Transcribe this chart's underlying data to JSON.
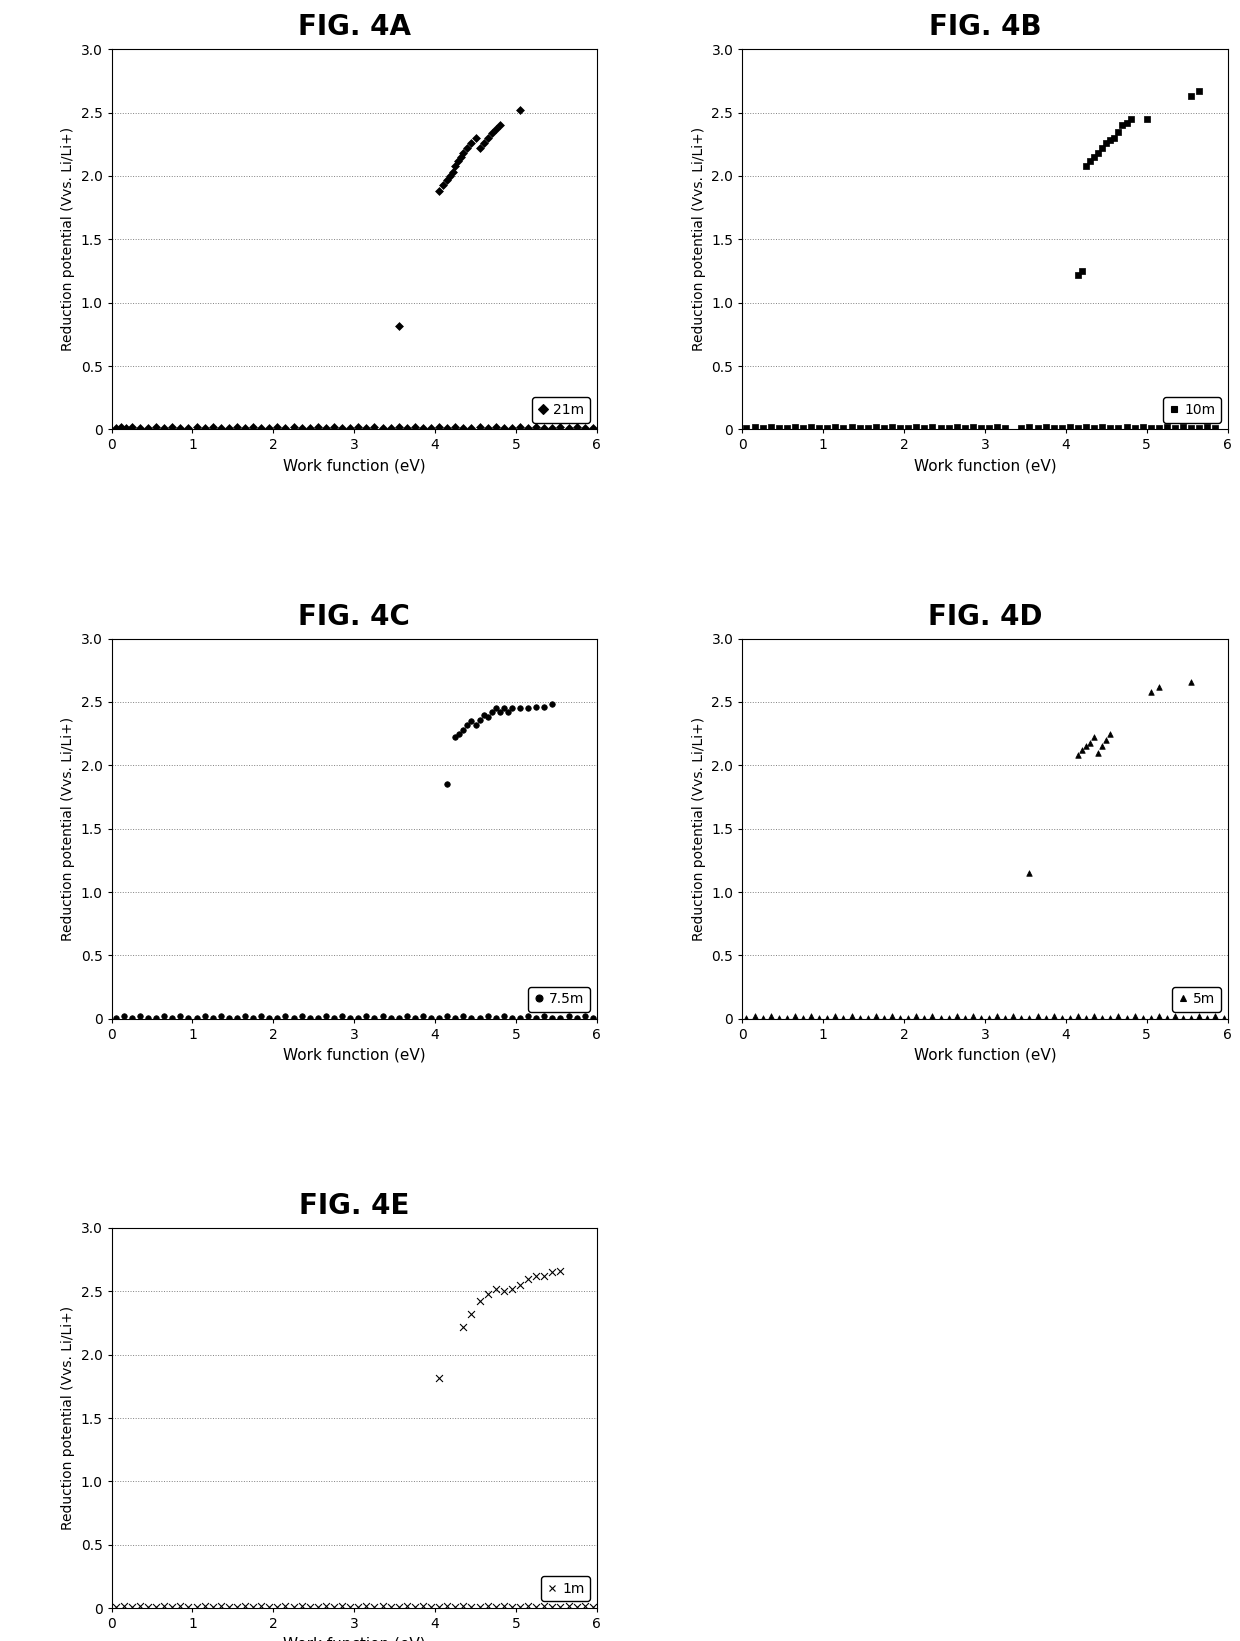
{
  "fig_titles": [
    "FIG. 4A",
    "FIG. 4B",
    "FIG. 4C",
    "FIG. 4D",
    "FIG. 4E"
  ],
  "legend_labels": [
    "21m",
    "10m",
    "7.5m",
    "5m",
    "1m"
  ],
  "markers": [
    "D",
    "s",
    "o",
    "^",
    "x"
  ],
  "xlabel": "Work function (eV)",
  "ylabel": "Reduction potential (Vvs. Li/Li+)",
  "xlim": [
    0,
    6
  ],
  "ylim": [
    0.0,
    3.0
  ],
  "yticks": [
    0.0,
    0.5,
    1.0,
    1.5,
    2.0,
    2.5,
    3.0
  ],
  "ytick_labels": [
    "0",
    "0.5",
    "1.0",
    "1.5",
    "2.0",
    "2.5",
    "3.0"
  ],
  "xticks": [
    0,
    1,
    2,
    3,
    4,
    5,
    6
  ],
  "plots": [
    {
      "comment": "FIG 4A - 21m - diamond markers",
      "x_near_zero": [
        0.05,
        0.12,
        0.18,
        0.25,
        0.35,
        0.45,
        0.55,
        0.65,
        0.75,
        0.85,
        0.95,
        1.05,
        1.15,
        1.25,
        1.35,
        1.45,
        1.55,
        1.65,
        1.75,
        1.85,
        1.95,
        2.05,
        2.15,
        2.25,
        2.35,
        2.45,
        2.55,
        2.65,
        2.75,
        2.85,
        2.95,
        3.05,
        3.15,
        3.25,
        3.35,
        3.45,
        3.55,
        3.65,
        3.75,
        3.85,
        3.95,
        4.05,
        4.15,
        4.25,
        4.35,
        4.45,
        4.55,
        4.65,
        4.75,
        4.85,
        4.95,
        5.05,
        5.15,
        5.25,
        5.35,
        5.45,
        5.55,
        5.65,
        5.75,
        5.85,
        5.95
      ],
      "y_near_zero": [
        0.01,
        0.02,
        0.01,
        0.02,
        0.01,
        0.01,
        0.02,
        0.01,
        0.02,
        0.01,
        0.01,
        0.02,
        0.01,
        0.02,
        0.01,
        0.01,
        0.02,
        0.01,
        0.02,
        0.01,
        0.01,
        0.02,
        0.01,
        0.02,
        0.01,
        0.01,
        0.02,
        0.01,
        0.02,
        0.01,
        0.01,
        0.02,
        0.01,
        0.02,
        0.01,
        0.01,
        0.02,
        0.01,
        0.02,
        0.01,
        0.01,
        0.02,
        0.01,
        0.02,
        0.01,
        0.01,
        0.02,
        0.01,
        0.02,
        0.01,
        0.01,
        0.02,
        0.01,
        0.02,
        0.01,
        0.01,
        0.02,
        0.01,
        0.02,
        0.01,
        0.01
      ],
      "x_cluster": [
        3.55,
        4.05,
        4.1,
        4.15,
        4.18,
        4.22,
        4.25,
        4.28,
        4.32,
        4.35,
        4.4,
        4.45,
        4.5,
        4.55,
        4.6,
        4.65,
        4.7,
        4.75,
        4.8,
        5.05
      ],
      "y_cluster": [
        0.82,
        1.88,
        1.93,
        1.97,
        2.0,
        2.03,
        2.08,
        2.12,
        2.15,
        2.18,
        2.22,
        2.26,
        2.3,
        2.22,
        2.26,
        2.3,
        2.34,
        2.37,
        2.4,
        2.52
      ]
    },
    {
      "comment": "FIG 4B - 10m - square markers",
      "x_near_zero": [
        0.05,
        0.15,
        0.25,
        0.35,
        0.45,
        0.55,
        0.65,
        0.75,
        0.85,
        0.95,
        1.05,
        1.15,
        1.25,
        1.35,
        1.45,
        1.55,
        1.65,
        1.75,
        1.85,
        1.95,
        2.05,
        2.15,
        2.25,
        2.35,
        2.45,
        2.55,
        2.65,
        2.75,
        2.85,
        2.95,
        3.05,
        3.15,
        3.25,
        3.45,
        3.55,
        3.65,
        3.75,
        3.85,
        3.95,
        4.05,
        4.15,
        4.25,
        4.35,
        4.45,
        4.55,
        4.65,
        4.75,
        4.85,
        4.95,
        5.05,
        5.15,
        5.25,
        5.35,
        5.45,
        5.55,
        5.65,
        5.75,
        5.85
      ],
      "y_near_zero": [
        0.01,
        0.02,
        0.01,
        0.02,
        0.01,
        0.01,
        0.02,
        0.01,
        0.02,
        0.01,
        0.01,
        0.02,
        0.01,
        0.02,
        0.01,
        0.01,
        0.02,
        0.01,
        0.02,
        0.01,
        0.01,
        0.02,
        0.01,
        0.02,
        0.01,
        0.01,
        0.02,
        0.01,
        0.02,
        0.01,
        0.01,
        0.02,
        0.01,
        0.01,
        0.02,
        0.01,
        0.02,
        0.01,
        0.01,
        0.02,
        0.01,
        0.02,
        0.01,
        0.02,
        0.01,
        0.01,
        0.02,
        0.01,
        0.02,
        0.01,
        0.01,
        0.02,
        0.01,
        0.02,
        0.01,
        0.01,
        0.02,
        0.01
      ],
      "x_cluster": [
        4.15,
        4.2,
        4.25,
        4.3,
        4.35,
        4.4,
        4.45,
        4.5,
        4.55,
        4.6,
        4.65,
        4.7,
        4.75,
        4.8,
        5.0,
        5.55,
        5.65
      ],
      "y_cluster": [
        1.22,
        1.25,
        2.08,
        2.12,
        2.15,
        2.18,
        2.22,
        2.26,
        2.28,
        2.3,
        2.35,
        2.4,
        2.42,
        2.45,
        2.45,
        2.63,
        2.67
      ]
    },
    {
      "comment": "FIG 4C - 7.5m - circle markers",
      "x_near_zero": [
        0.05,
        0.15,
        0.25,
        0.35,
        0.45,
        0.55,
        0.65,
        0.75,
        0.85,
        0.95,
        1.05,
        1.15,
        1.25,
        1.35,
        1.45,
        1.55,
        1.65,
        1.75,
        1.85,
        1.95,
        2.05,
        2.15,
        2.25,
        2.35,
        2.45,
        2.55,
        2.65,
        2.75,
        2.85,
        2.95,
        3.05,
        3.15,
        3.25,
        3.35,
        3.45,
        3.55,
        3.65,
        3.75,
        3.85,
        3.95,
        4.05,
        4.15,
        4.25,
        4.35,
        4.45,
        4.55,
        4.65,
        4.75,
        4.85,
        4.95,
        5.05,
        5.15,
        5.25,
        5.35,
        5.45,
        5.55,
        5.65,
        5.75,
        5.85,
        5.95
      ],
      "y_near_zero": [
        0.01,
        0.02,
        0.01,
        0.02,
        0.01,
        0.01,
        0.02,
        0.01,
        0.02,
        0.01,
        0.01,
        0.02,
        0.01,
        0.02,
        0.01,
        0.01,
        0.02,
        0.01,
        0.02,
        0.01,
        0.01,
        0.02,
        0.01,
        0.02,
        0.01,
        0.01,
        0.02,
        0.01,
        0.02,
        0.01,
        0.01,
        0.02,
        0.01,
        0.02,
        0.01,
        0.01,
        0.02,
        0.01,
        0.02,
        0.01,
        0.01,
        0.02,
        0.01,
        0.02,
        0.01,
        0.01,
        0.02,
        0.01,
        0.02,
        0.01,
        0.01,
        0.02,
        0.01,
        0.02,
        0.01,
        0.01,
        0.02,
        0.01,
        0.02,
        0.01
      ],
      "x_cluster": [
        4.15,
        4.25,
        4.3,
        4.35,
        4.4,
        4.45,
        4.5,
        4.55,
        4.6,
        4.65,
        4.7,
        4.75,
        4.8,
        4.85,
        4.9,
        4.95,
        5.05,
        5.15,
        5.25,
        5.35,
        5.45
      ],
      "y_cluster": [
        1.85,
        2.22,
        2.25,
        2.28,
        2.32,
        2.35,
        2.32,
        2.36,
        2.4,
        2.38,
        2.42,
        2.45,
        2.42,
        2.45,
        2.42,
        2.45,
        2.45,
        2.45,
        2.46,
        2.46,
        2.48
      ]
    },
    {
      "comment": "FIG 4D - 5m - triangle markers",
      "x_near_zero": [
        0.05,
        0.15,
        0.25,
        0.35,
        0.45,
        0.55,
        0.65,
        0.75,
        0.85,
        0.95,
        1.05,
        1.15,
        1.25,
        1.35,
        1.45,
        1.55,
        1.65,
        1.75,
        1.85,
        1.95,
        2.05,
        2.15,
        2.25,
        2.35,
        2.45,
        2.55,
        2.65,
        2.75,
        2.85,
        2.95,
        3.05,
        3.15,
        3.25,
        3.35,
        3.45,
        3.55,
        3.65,
        3.75,
        3.85,
        3.95,
        4.05,
        4.15,
        4.25,
        4.35,
        4.45,
        4.55,
        4.65,
        4.75,
        4.85,
        4.95,
        5.05,
        5.15,
        5.25,
        5.35,
        5.45,
        5.55,
        5.65,
        5.75,
        5.85,
        5.95
      ],
      "y_near_zero": [
        0.01,
        0.02,
        0.01,
        0.02,
        0.01,
        0.01,
        0.02,
        0.01,
        0.02,
        0.01,
        0.01,
        0.02,
        0.01,
        0.02,
        0.01,
        0.01,
        0.02,
        0.01,
        0.02,
        0.01,
        0.01,
        0.02,
        0.01,
        0.02,
        0.01,
        0.01,
        0.02,
        0.01,
        0.02,
        0.01,
        0.01,
        0.02,
        0.01,
        0.02,
        0.01,
        0.01,
        0.02,
        0.01,
        0.02,
        0.01,
        0.01,
        0.02,
        0.01,
        0.02,
        0.01,
        0.01,
        0.02,
        0.01,
        0.02,
        0.01,
        0.01,
        0.02,
        0.01,
        0.02,
        0.01,
        0.01,
        0.02,
        0.01,
        0.02,
        0.01
      ],
      "x_cluster": [
        3.55,
        4.15,
        4.2,
        4.25,
        4.3,
        4.35,
        4.4,
        4.45,
        4.5,
        4.55,
        5.05,
        5.15,
        5.55
      ],
      "y_cluster": [
        1.15,
        2.08,
        2.12,
        2.15,
        2.18,
        2.22,
        2.1,
        2.15,
        2.2,
        2.25,
        2.58,
        2.62,
        2.66
      ]
    },
    {
      "comment": "FIG 4E - 1m - x markers",
      "x_near_zero": [
        0.05,
        0.15,
        0.25,
        0.35,
        0.45,
        0.55,
        0.65,
        0.75,
        0.85,
        0.95,
        1.05,
        1.15,
        1.25,
        1.35,
        1.45,
        1.55,
        1.65,
        1.75,
        1.85,
        1.95,
        2.05,
        2.15,
        2.25,
        2.35,
        2.45,
        2.55,
        2.65,
        2.75,
        2.85,
        2.95,
        3.05,
        3.15,
        3.25,
        3.35,
        3.45,
        3.55,
        3.65,
        3.75,
        3.85,
        3.95,
        4.05,
        4.15,
        4.25,
        4.35,
        4.45,
        4.55,
        4.65,
        4.75,
        4.85,
        4.95,
        5.05,
        5.15,
        5.25,
        5.35,
        5.45,
        5.55,
        5.65,
        5.75,
        5.85,
        5.95
      ],
      "y_near_zero": [
        0.01,
        0.02,
        0.01,
        0.02,
        0.01,
        0.01,
        0.02,
        0.01,
        0.02,
        0.01,
        0.01,
        0.02,
        0.01,
        0.02,
        0.01,
        0.01,
        0.02,
        0.01,
        0.02,
        0.01,
        0.01,
        0.02,
        0.01,
        0.02,
        0.01,
        0.01,
        0.02,
        0.01,
        0.02,
        0.01,
        0.01,
        0.02,
        0.01,
        0.02,
        0.01,
        0.01,
        0.02,
        0.01,
        0.02,
        0.01,
        0.01,
        0.02,
        0.01,
        0.02,
        0.01,
        0.01,
        0.02,
        0.01,
        0.02,
        0.01,
        0.01,
        0.02,
        0.01,
        0.02,
        0.01,
        0.01,
        0.02,
        0.01,
        0.02,
        0.01
      ],
      "x_cluster": [
        4.05,
        4.35,
        4.45,
        4.55,
        4.65,
        4.75,
        4.85,
        4.95,
        5.05,
        5.15,
        5.25,
        5.35,
        5.45,
        5.55
      ],
      "y_cluster": [
        1.82,
        2.22,
        2.32,
        2.42,
        2.48,
        2.52,
        2.5,
        2.52,
        2.55,
        2.6,
        2.62,
        2.62,
        2.65,
        2.66
      ]
    }
  ]
}
